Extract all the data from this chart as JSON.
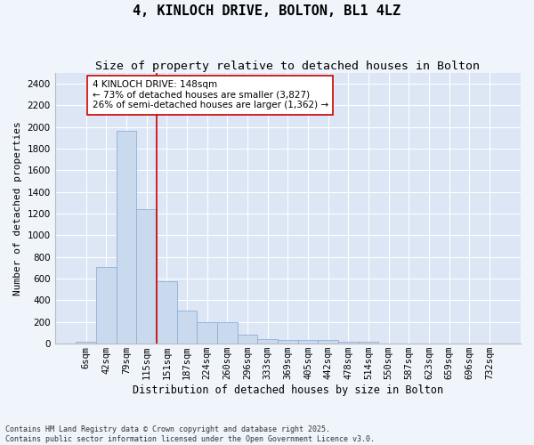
{
  "title": "4, KINLOCH DRIVE, BOLTON, BL1 4LZ",
  "subtitle": "Size of property relative to detached houses in Bolton",
  "xlabel": "Distribution of detached houses by size in Bolton",
  "ylabel": "Number of detached properties",
  "footnote": "Contains HM Land Registry data © Crown copyright and database right 2025.\nContains public sector information licensed under the Open Government Licence v3.0.",
  "bin_labels": [
    "6sqm",
    "42sqm",
    "79sqm",
    "115sqm",
    "151sqm",
    "187sqm",
    "224sqm",
    "260sqm",
    "296sqm",
    "333sqm",
    "369sqm",
    "405sqm",
    "442sqm",
    "478sqm",
    "514sqm",
    "550sqm",
    "587sqm",
    "623sqm",
    "659sqm",
    "696sqm",
    "732sqm"
  ],
  "bar_values": [
    15,
    710,
    1960,
    1240,
    575,
    305,
    200,
    200,
    80,
    45,
    35,
    32,
    32,
    20,
    20,
    5,
    5,
    2,
    2,
    1,
    1
  ],
  "bar_color": "#c9d9ee",
  "bar_edge_color": "#90aed4",
  "vline_color": "#cc0000",
  "annotation_text": "4 KINLOCH DRIVE: 148sqm\n← 73% of detached houses are smaller (3,827)\n26% of semi-detached houses are larger (1,362) →",
  "annotation_box_color": "#cc0000",
  "ylim": [
    0,
    2500
  ],
  "yticks": [
    0,
    200,
    400,
    600,
    800,
    1000,
    1200,
    1400,
    1600,
    1800,
    2000,
    2200,
    2400
  ],
  "background_color": "#dce6f5",
  "grid_color": "#ffffff",
  "fig_background": "#f0f4fb",
  "title_fontsize": 11,
  "subtitle_fontsize": 9.5,
  "axis_label_fontsize": 8.5,
  "tick_fontsize": 7.5,
  "annotation_fontsize": 7.5,
  "ylabel_fontsize": 8
}
